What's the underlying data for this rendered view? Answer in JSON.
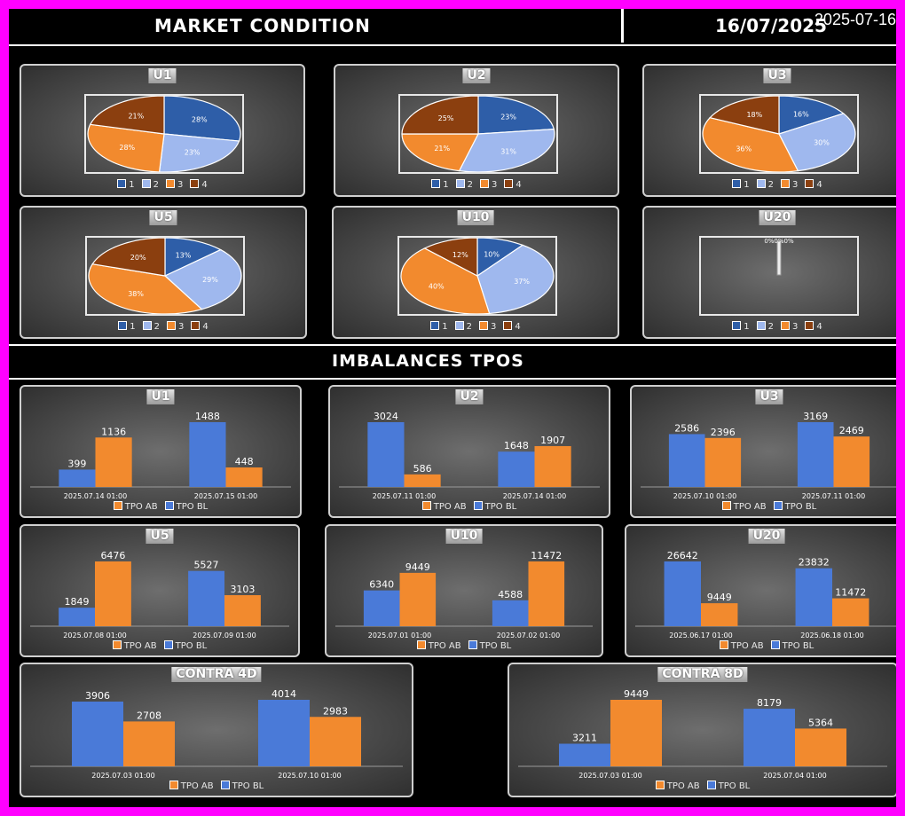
{
  "header": {
    "title": "MARKET CONDITION",
    "date": "16/07/2025",
    "stamp": "2025-07-16"
  },
  "imbalances_title": "IMBALANCES TPOS",
  "colors": {
    "c1": "#2e5ea8",
    "c2": "#9fb8ee",
    "c3": "#f28a2e",
    "c4": "#8b3f0f",
    "ab": "#f28a2e",
    "bl": "#4a7ad8"
  },
  "pie_legend": [
    "1",
    "2",
    "3",
    "4"
  ],
  "bar_legend": {
    "ab": "TPO AB",
    "bl": "TPO BL"
  },
  "chart_data": [
    {
      "type": "pie",
      "title": "U1",
      "categories": [
        "1",
        "2",
        "3",
        "4"
      ],
      "values": [
        28,
        23,
        28,
        21
      ]
    },
    {
      "type": "pie",
      "title": "U2",
      "categories": [
        "1",
        "2",
        "3",
        "4"
      ],
      "values": [
        23,
        31,
        21,
        25
      ]
    },
    {
      "type": "pie",
      "title": "U3",
      "categories": [
        "1",
        "2",
        "3",
        "4"
      ],
      "values": [
        16,
        30,
        36,
        18
      ]
    },
    {
      "type": "pie",
      "title": "U5",
      "categories": [
        "1",
        "2",
        "3",
        "4"
      ],
      "values": [
        13,
        29,
        38,
        20
      ]
    },
    {
      "type": "pie",
      "title": "U10",
      "categories": [
        "1",
        "2",
        "3",
        "4"
      ],
      "values": [
        10,
        37,
        40,
        12
      ]
    },
    {
      "type": "pie",
      "title": "U20",
      "categories": [
        "1",
        "2",
        "3",
        "4"
      ],
      "values": [
        0,
        0,
        0,
        0
      ],
      "note": "0%0%0%"
    },
    {
      "type": "bar",
      "title": "U1",
      "categories": [
        "2025.07.14 01:00",
        "2025.07.15 01:00"
      ],
      "series": [
        {
          "name": "TPO BL",
          "values": [
            399,
            1488
          ]
        },
        {
          "name": "TPO AB",
          "values": [
            1136,
            448
          ]
        }
      ]
    },
    {
      "type": "bar",
      "title": "U2",
      "categories": [
        "2025.07.11 01:00",
        "2025.07.14 01:00"
      ],
      "series": [
        {
          "name": "TPO BL",
          "values": [
            3024,
            1648
          ]
        },
        {
          "name": "TPO AB",
          "values": [
            586,
            1907
          ]
        }
      ]
    },
    {
      "type": "bar",
      "title": "U3",
      "categories": [
        "2025.07.10 01:00",
        "2025.07.11 01:00"
      ],
      "series": [
        {
          "name": "TPO BL",
          "values": [
            2586,
            3169
          ]
        },
        {
          "name": "TPO AB",
          "values": [
            2396,
            2469
          ]
        }
      ]
    },
    {
      "type": "bar",
      "title": "U5",
      "categories": [
        "2025.07.08 01:00",
        "2025.07.09 01:00"
      ],
      "series": [
        {
          "name": "TPO BL",
          "values": [
            1849,
            5527
          ]
        },
        {
          "name": "TPO AB",
          "values": [
            6476,
            3103
          ]
        }
      ]
    },
    {
      "type": "bar",
      "title": "U10",
      "categories": [
        "2025.07.01 01:00",
        "2025.07.02 01:00"
      ],
      "series": [
        {
          "name": "TPO BL",
          "values": [
            6340,
            4588
          ]
        },
        {
          "name": "TPO AB",
          "values": [
            9449,
            11472
          ]
        }
      ]
    },
    {
      "type": "bar",
      "title": "U20",
      "categories": [
        "2025.06.17 01:00",
        "2025.06.18 01:00"
      ],
      "series": [
        {
          "name": "TPO BL",
          "values": [
            26642,
            23832
          ]
        },
        {
          "name": "TPO AB",
          "values": [
            9449,
            11472
          ]
        }
      ]
    },
    {
      "type": "bar",
      "title": "CONTRA 4D",
      "categories": [
        "2025.07.03 01:00",
        "2025.07.10 01:00"
      ],
      "series": [
        {
          "name": "TPO BL",
          "values": [
            3906,
            4014
          ]
        },
        {
          "name": "TPO AB",
          "values": [
            2708,
            2983
          ]
        }
      ]
    },
    {
      "type": "bar",
      "title": "CONTRA 8D",
      "categories": [
        "2025.07.03 01:00",
        "2025.07.04 01:00"
      ],
      "series": [
        {
          "name": "TPO BL",
          "values": [
            3211,
            8179
          ]
        },
        {
          "name": "TPO AB",
          "values": [
            9449,
            5364
          ]
        }
      ]
    }
  ]
}
